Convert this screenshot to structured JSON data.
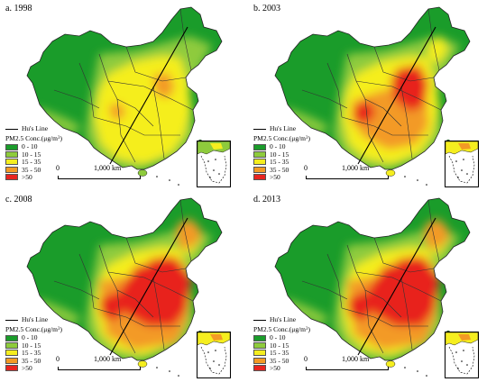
{
  "panels": [
    {
      "title": "a. 1998",
      "hot_level": 1
    },
    {
      "title": "b. 2003",
      "hot_level": 2
    },
    {
      "title": "c. 2008",
      "hot_level": 3
    },
    {
      "title": "d. 2013",
      "hot_level": 3
    }
  ],
  "legend": {
    "hu_line_label": "Hu's Line",
    "conc_title_prefix": "PM2.5 Conc.(",
    "conc_title_unit": "μg/m",
    "conc_title_sup": "3",
    "conc_title_suffix": ")",
    "classes": [
      {
        "label": "0 - 10",
        "color": "#1a9c2a"
      },
      {
        "label": "10 - 15",
        "color": "#8ecb3c"
      },
      {
        "label": "15 - 35",
        "color": "#f5ee1f"
      },
      {
        "label": "35 - 50",
        "color": "#f39a25"
      },
      {
        "label": ">50",
        "color": "#e8241f"
      }
    ]
  },
  "scale": {
    "start_label": "0",
    "end_label": "1,000 km"
  }
}
